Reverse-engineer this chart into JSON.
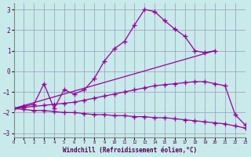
{
  "xlabel": "Windchill (Refroidissement éolien,°C)",
  "bg_color": "#c8eaea",
  "line_color": "#990099",
  "grid_color": "#aabbcc",
  "xlim": [
    0,
    23
  ],
  "ylim": [
    -3.2,
    3.3
  ],
  "yticks": [
    -3,
    -2,
    -1,
    0,
    1,
    2,
    3
  ],
  "line1": {
    "x": [
      0,
      1,
      2,
      3,
      4,
      5,
      6,
      7,
      8,
      9,
      10,
      11,
      12,
      13,
      14,
      15,
      16,
      17,
      18,
      19,
      20
    ],
    "y": [
      -1.8,
      -1.7,
      -1.6,
      -0.6,
      -1.8,
      -0.9,
      -1.1,
      -0.9,
      -0.35,
      0.5,
      1.1,
      1.45,
      2.25,
      3.0,
      2.9,
      2.45,
      2.05,
      1.7,
      1.0,
      0.9,
      1.0
    ]
  },
  "line2": {
    "x": [
      0,
      20
    ],
    "y": [
      -1.8,
      1.0
    ]
  },
  "line3": {
    "x": [
      0,
      1,
      2,
      3,
      4,
      5,
      6,
      7,
      8,
      9,
      10,
      11,
      12,
      13,
      14,
      15,
      16,
      17,
      18,
      19,
      20,
      21,
      22,
      23
    ],
    "y": [
      -1.8,
      -1.85,
      -1.9,
      -1.9,
      -1.95,
      -2.0,
      -2.0,
      -2.05,
      -2.1,
      -2.1,
      -2.15,
      -2.15,
      -2.2,
      -2.2,
      -2.25,
      -2.25,
      -2.3,
      -2.35,
      -2.4,
      -2.45,
      -2.5,
      -2.55,
      -2.65,
      -2.75
    ]
  },
  "line4": {
    "x": [
      0,
      1,
      2,
      3,
      4,
      5,
      6,
      7,
      8,
      9,
      10,
      11,
      12,
      13,
      14,
      15,
      16,
      17,
      18,
      19,
      20,
      21,
      22,
      23
    ],
    "y": [
      -1.8,
      -1.75,
      -1.7,
      -1.65,
      -1.6,
      -1.55,
      -1.5,
      -1.4,
      -1.3,
      -1.2,
      -1.1,
      -1.0,
      -0.9,
      -0.8,
      -0.7,
      -0.65,
      -0.6,
      -0.55,
      -0.5,
      -0.5,
      -0.6,
      -0.7,
      -2.1,
      -2.6
    ]
  }
}
